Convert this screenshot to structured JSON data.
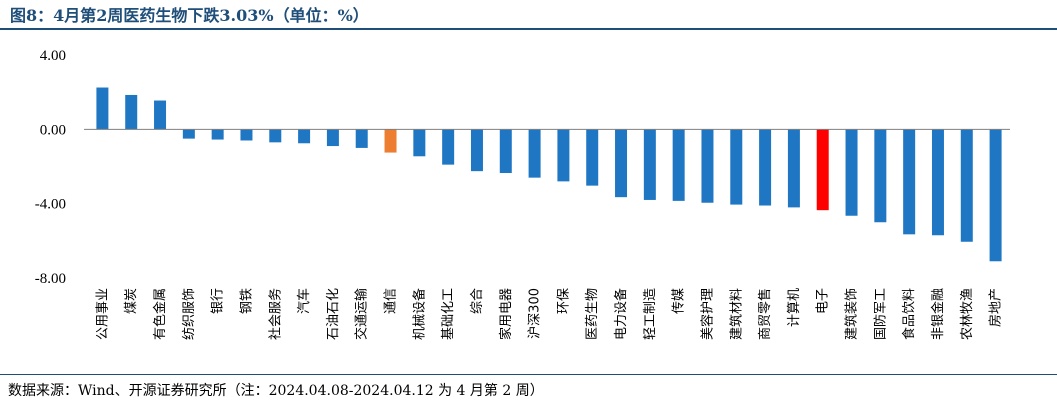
{
  "title": "图8：4月第2周医药生物下跌3.03%（单位：%）",
  "source": "数据来源：Wind、开源证券研究所（注：2024.04.08-2024.04.12 为 4 月第 2 周）",
  "colors": {
    "default": "#1f77c4",
    "highlight_orange": "#ed7d31",
    "highlight_red": "#ff0000",
    "axis": "#7f7f7f",
    "title": "#1f4e79"
  },
  "chart_data": {
    "type": "bar",
    "title": "4月第2周医药生物下跌3.03%（单位：%）",
    "ylim": [
      -8,
      4
    ],
    "yticks": [
      "4.00",
      "0.00",
      "-4.00",
      "-8.00"
    ],
    "ytick_values": [
      4,
      0,
      -4,
      -8
    ],
    "categories": [
      "公用事业",
      "煤炭",
      "有色金属",
      "纺织服饰",
      "银行",
      "钢铁",
      "社会服务",
      "汽车",
      "石油石化",
      "交通运输",
      "通信",
      "机械设备",
      "基础化工",
      "综合",
      "家用电器",
      "沪深300",
      "环保",
      "医药生物",
      "电力设备",
      "轻工制造",
      "传媒",
      "美容护理",
      "建筑材料",
      "商贸零售",
      "计算机",
      "电子",
      "建筑装饰",
      "国防军工",
      "食品饮料",
      "非银金融",
      "农林牧渔",
      "房地产"
    ],
    "values": [
      2.25,
      1.85,
      1.55,
      -0.5,
      -0.55,
      -0.6,
      -0.7,
      -0.75,
      -0.9,
      -1.0,
      -1.25,
      -1.45,
      -1.9,
      -2.25,
      -2.35,
      -2.6,
      -2.8,
      -3.03,
      -3.65,
      -3.8,
      -3.85,
      -3.95,
      -4.05,
      -4.1,
      -4.2,
      -4.35,
      -4.65,
      -5.0,
      -5.65,
      -5.7,
      -6.05,
      -7.1
    ],
    "highlights": {
      "通信": "orange",
      "电子": "red"
    }
  }
}
